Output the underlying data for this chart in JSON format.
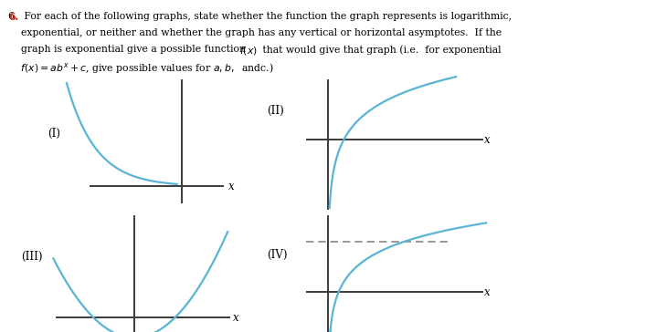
{
  "bg_color": "#ffffff",
  "curve_color": "#5ab4d4",
  "axis_color": "#3a3a3a",
  "dashed_color": "#888888",
  "text_color": "#000000",
  "num_color": "#cc2200",
  "line1": "6.  For each of the following graphs, state whether the function the graph represents is logarithmic,",
  "line2": "    exponential, or neither and whether the graph has any vertical or horizontal asymptotes.  If the",
  "line3": "    graph is exponential give a possible function ",
  "line4": "     that would give that graph (i.e.  for exponential",
  "line5_math": "f(x) = ab^x + c",
  "line5_text": ", give possible values for a, b,  andc.)",
  "labels": [
    "(I)",
    "(II)",
    "(III)",
    "(IV)"
  ]
}
